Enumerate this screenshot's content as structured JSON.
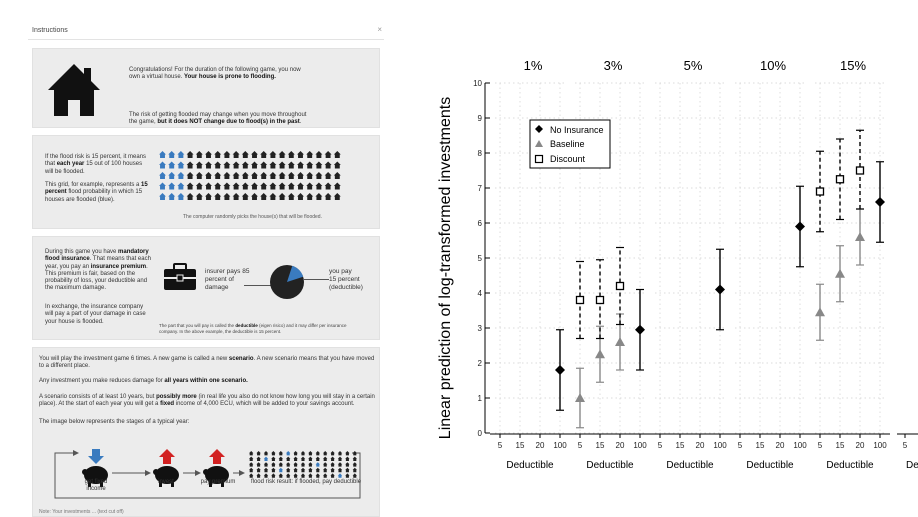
{
  "instructions": {
    "header": "Instructions",
    "close": "×",
    "sec1": {
      "p1_a": "Congratulations! For the duration of the following game, you now own a virtual house.",
      "p1_b": "Your house is prone to flooding.",
      "p2_a": "The risk of getting flooded may change when you move throughout the game,",
      "p2_b": "but it does NOT change due to flood(s) in the past",
      "p2_c": "."
    },
    "sec2": {
      "p1_a": "If the flood risk is 15 percent, it means that",
      "p1_b": "each year",
      "p1_c": "15 out of 100 houses will be flooded.",
      "p2_a": "This grid, for example, represents a",
      "p2_b": "15 percent",
      "p2_c": "flood probability in which 15 houses are flooded (blue).",
      "caption": "The computer randomly picks the house(s) that will be flooded.",
      "grid": {
        "rows": 5,
        "cols": 20,
        "flooded_per_row": 3
      }
    },
    "sec3": {
      "p1_a": "During this game you have",
      "p1_b": "mandatory flood insurance",
      "p1_c": ". That means that each year, you pay an",
      "p1_d": "insurance premium",
      "p1_e": ". This premium is fair, based on the probability of loss, your deductible and the maximum damage.",
      "p2": "In exchange, the insurance company will pay a part of your damage in case your house is flooded.",
      "insurer": "insurer pays 85 percent of damage",
      "you_a": "you pay",
      "you_b": "15 percent",
      "you_c": "(deductible)",
      "caption_a": "The part that you will pay is called the",
      "caption_b": "deductible",
      "caption_c": "(eigen risico) and it may differ per insurance company. In the above example, the deductible is 15 percent.",
      "deductible_share": 0.15
    },
    "sec4": {
      "p1_a": "You will play the investment game 6 times. A new game is called a new",
      "p1_b": "scenario",
      "p1_c": ". A new scenario means that you have moved to a different place.",
      "p2_a": "Any investment you make reduces damage for",
      "p2_b": "all years within one scenario.",
      "p3_a": "A scenario consists of at least 10 years, but",
      "p3_b": "possibly more",
      "p3_c": "(in real life you also do not know how long you will stay in a certain place). At the start of each year you will get a",
      "p3_d": "fixed",
      "p3_e": "income of 4,000 ECU, which will be added to your savings account.",
      "p4": "The image below represents the stages of a typical year:",
      "stages": [
        "get fixed income",
        "invest",
        "pay premium",
        "flood risk result: if flooded, pay deductible"
      ],
      "footer": "Note: Your investments ... (text cut off)"
    }
  },
  "chart_data": {
    "type": "scatter",
    "ylabel": "Linear prediction of log-transformed investments",
    "xlabel": "Deductible",
    "panels": [
      "1%",
      "3%",
      "5%",
      "10%",
      "15%"
    ],
    "x_ticks": [
      "5",
      "15",
      "20",
      "100"
    ],
    "ylim": [
      0,
      10
    ],
    "y_ticks": [
      0,
      1,
      2,
      3,
      4,
      5,
      6,
      7,
      8,
      9,
      10
    ],
    "legend": [
      "No Insurance",
      "Baseline",
      "Discount"
    ],
    "legend_position": "top-left",
    "grid": true,
    "series": [
      {
        "name": "No Insurance",
        "marker": "diamond",
        "color": "#000000",
        "points": [
          {
            "panel": "1%",
            "x": "100",
            "y": 1.8,
            "lo": 0.65,
            "hi": 2.95
          },
          {
            "panel": "3%",
            "x": "100",
            "y": 2.95,
            "lo": 1.8,
            "hi": 4.1
          },
          {
            "panel": "5%",
            "x": "100",
            "y": 4.1,
            "lo": 2.95,
            "hi": 5.25
          },
          {
            "panel": "10%",
            "x": "100",
            "y": 5.9,
            "lo": 4.75,
            "hi": 7.05
          },
          {
            "panel": "15%",
            "x": "100",
            "y": 6.6,
            "lo": 5.45,
            "hi": 7.75
          }
        ]
      },
      {
        "name": "Baseline",
        "marker": "triangle",
        "color": "#888888",
        "points": [
          {
            "panel": "3%",
            "x": "5",
            "y": 1.0,
            "lo": 0.15,
            "hi": 1.85
          },
          {
            "panel": "3%",
            "x": "15",
            "y": 2.25,
            "lo": 1.45,
            "hi": 3.05
          },
          {
            "panel": "3%",
            "x": "20",
            "y": 2.6,
            "lo": 1.8,
            "hi": 3.4
          },
          {
            "panel": "15%",
            "x": "5",
            "y": 3.45,
            "lo": 2.65,
            "hi": 4.25
          },
          {
            "panel": "15%",
            "x": "15",
            "y": 4.55,
            "lo": 3.75,
            "hi": 5.35
          },
          {
            "panel": "15%",
            "x": "20",
            "y": 5.6,
            "lo": 4.8,
            "hi": 6.4
          }
        ]
      },
      {
        "name": "Discount",
        "marker": "square",
        "color": "#000000",
        "points": [
          {
            "panel": "3%",
            "x": "5",
            "y": 3.8,
            "lo": 2.7,
            "hi": 4.9
          },
          {
            "panel": "3%",
            "x": "15",
            "y": 3.8,
            "lo": 2.7,
            "hi": 4.95
          },
          {
            "panel": "3%",
            "x": "20",
            "y": 4.2,
            "lo": 3.1,
            "hi": 5.3
          },
          {
            "panel": "15%",
            "x": "5",
            "y": 6.9,
            "lo": 5.75,
            "hi": 8.05
          },
          {
            "panel": "15%",
            "x": "15",
            "y": 7.25,
            "lo": 6.1,
            "hi": 8.4
          },
          {
            "panel": "15%",
            "x": "20",
            "y": 7.5,
            "lo": 6.4,
            "hi": 8.65
          }
        ]
      }
    ]
  },
  "colors": {
    "flooded": "#3a7bbf",
    "house": "#222222",
    "panel_bg": "#ececec",
    "up_arrow": "#d22222",
    "down_arrow": "#3a7bbf"
  }
}
